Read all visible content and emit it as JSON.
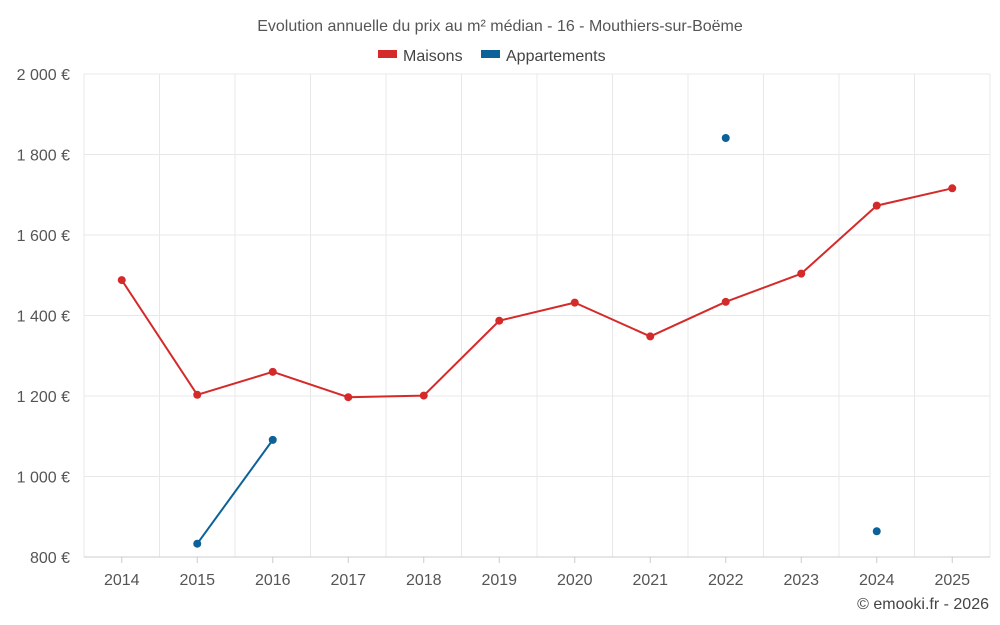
{
  "chart_data": {
    "type": "line",
    "title": "Evolution annuelle du prix au m² médian - 16 - Mouthiers-sur-Boëme",
    "categories": [
      "2014",
      "2015",
      "2016",
      "2017",
      "2018",
      "2019",
      "2020",
      "2021",
      "2022",
      "2023",
      "2024",
      "2025"
    ],
    "y_ticks": [
      "800 €",
      "1 000 €",
      "1 200 €",
      "1 400 €",
      "1 600 €",
      "1 800 €",
      "2 000 €"
    ],
    "ylim": [
      800,
      2000
    ],
    "grid": true,
    "legend_position": "top-center",
    "series": [
      {
        "name": "Maisons",
        "color": "#d42a2a",
        "values": [
          1488,
          1203,
          1260,
          1197,
          1201,
          1387,
          1432,
          1348,
          1434,
          1504,
          1673,
          1716
        ]
      },
      {
        "name": "Appartements",
        "color": "#0b6198",
        "values": [
          null,
          833,
          1091,
          null,
          null,
          null,
          null,
          null,
          1841,
          null,
          864,
          null
        ]
      }
    ],
    "credit": "© emooki.fr - 2026"
  }
}
